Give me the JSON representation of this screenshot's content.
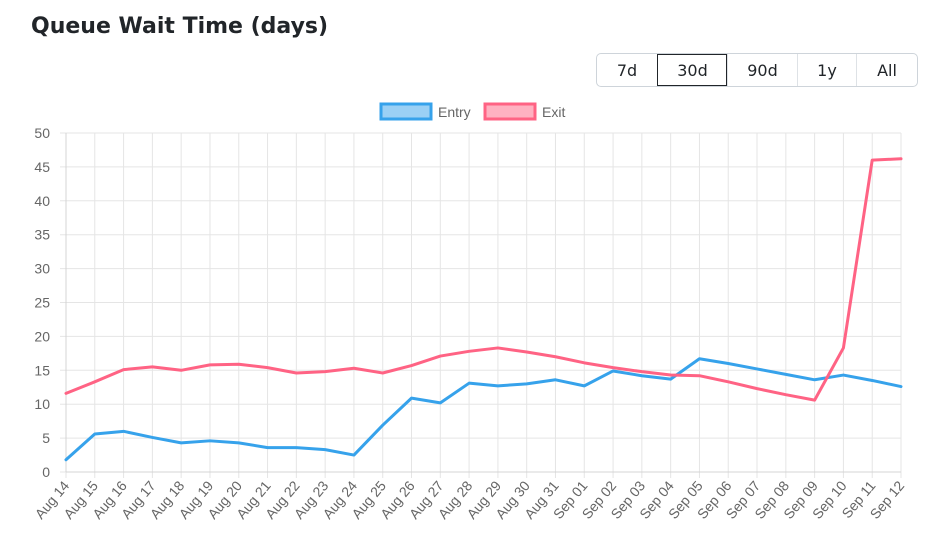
{
  "header": {
    "title": "Queue Wait Time (days)"
  },
  "range_selector": {
    "options": [
      "7d",
      "30d",
      "90d",
      "1y",
      "All"
    ],
    "selected": "30d"
  },
  "chart_data": {
    "type": "line",
    "title": "",
    "xlabel": "",
    "ylabel": "",
    "ylim": [
      0,
      50
    ],
    "yticks": [
      0,
      5,
      10,
      15,
      20,
      25,
      30,
      35,
      40,
      45,
      50
    ],
    "grid": true,
    "legend_position": "top-center",
    "categories": [
      "Aug 14",
      "Aug 15",
      "Aug 16",
      "Aug 17",
      "Aug 18",
      "Aug 19",
      "Aug 20",
      "Aug 21",
      "Aug 22",
      "Aug 23",
      "Aug 24",
      "Aug 25",
      "Aug 26",
      "Aug 27",
      "Aug 28",
      "Aug 29",
      "Aug 30",
      "Aug 31",
      "Sep 01",
      "Sep 02",
      "Sep 03",
      "Sep 04",
      "Sep 05",
      "Sep 06",
      "Sep 07",
      "Sep 08",
      "Sep 09",
      "Sep 10",
      "Sep 11",
      "Sep 12"
    ],
    "series": [
      {
        "name": "Entry",
        "color": "#36a2eb",
        "fill": "#9ad0f5",
        "values": [
          1.8,
          5.6,
          6.0,
          5.1,
          4.3,
          4.6,
          4.3,
          3.6,
          3.6,
          3.3,
          2.5,
          6.9,
          10.9,
          10.2,
          13.1,
          12.7,
          13.0,
          13.6,
          12.7,
          14.9,
          14.2,
          13.7,
          16.7,
          16.0,
          15.2,
          14.4,
          13.6,
          14.3,
          13.5,
          12.6
        ]
      },
      {
        "name": "Exit",
        "color": "#ff6384",
        "fill": "#ffb1c1",
        "values": [
          11.6,
          13.3,
          15.1,
          15.5,
          15.0,
          15.8,
          15.9,
          15.4,
          14.6,
          14.8,
          15.3,
          14.6,
          15.7,
          17.1,
          17.8,
          18.3,
          17.7,
          17.0,
          16.1,
          15.4,
          14.8,
          14.3,
          14.2,
          13.3,
          12.3,
          11.4,
          10.6,
          18.3,
          46.0,
          46.2
        ]
      }
    ]
  }
}
